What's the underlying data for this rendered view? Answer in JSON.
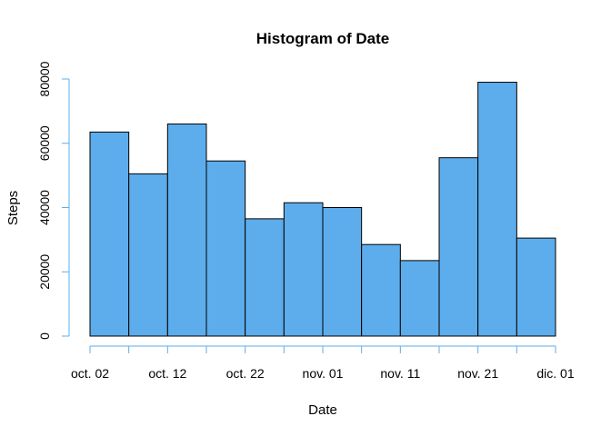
{
  "chart_data": {
    "type": "bar",
    "title": "Histogram of Date",
    "xlabel": "Date",
    "ylabel": "Steps",
    "x_tick_labels": [
      "oct. 02",
      "oct. 12",
      "oct. 22",
      "nov. 01",
      "nov. 11",
      "nov. 21",
      "dic. 01"
    ],
    "y_tick_labels": [
      "0",
      "20000",
      "40000",
      "60000",
      "80000"
    ],
    "y_ticks": [
      0,
      20000,
      40000,
      60000,
      80000
    ],
    "bin_edges": [
      "oct. 02",
      "oct. 07",
      "oct. 12",
      "oct. 17",
      "oct. 22",
      "oct. 27",
      "nov. 01",
      "nov. 06",
      "nov. 11",
      "nov. 16",
      "nov. 21",
      "nov. 26",
      "dic. 01"
    ],
    "values": [
      63500,
      50500,
      66000,
      54500,
      36500,
      41500,
      40000,
      28500,
      23500,
      55500,
      79000,
      30500
    ],
    "ylim": [
      0,
      80000
    ],
    "bar_color": "#5DADEC",
    "axis_color": "#5DADEC",
    "grid": false
  }
}
